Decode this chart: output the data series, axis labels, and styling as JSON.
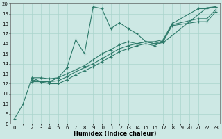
{
  "xlabel": "Humidex (Indice chaleur)",
  "bg_color": "#cde8e4",
  "line_color": "#2d7a6a",
  "grid_color": "#aad4cc",
  "xlim": [
    -0.5,
    23.5
  ],
  "ylim": [
    8,
    20
  ],
  "xtick_labels": [
    "0",
    "1",
    "2",
    "3",
    "4",
    "5",
    "6",
    "7",
    "8",
    "9",
    "10",
    "11",
    "12",
    "13",
    "14",
    "15",
    "16",
    "17",
    "18",
    "19",
    "20",
    "21",
    "22",
    "23"
  ],
  "yticks": [
    8,
    9,
    10,
    11,
    12,
    13,
    14,
    15,
    16,
    17,
    18,
    19,
    20
  ],
  "series": [
    {
      "x": [
        0,
        1,
        2,
        3,
        4,
        5,
        6,
        7,
        8,
        9,
        10,
        11,
        12,
        13,
        14,
        15,
        16,
        17,
        22,
        23
      ],
      "y": [
        8.5,
        10.0,
        12.6,
        12.2,
        12.2,
        12.6,
        13.6,
        16.4,
        15.0,
        19.7,
        19.5,
        17.5,
        18.1,
        17.5,
        17.0,
        16.2,
        16.0,
        16.1,
        19.6,
        19.7
      ]
    },
    {
      "x": [
        2,
        3,
        4,
        5,
        6,
        7,
        8,
        9,
        10,
        11,
        12,
        13,
        14,
        15,
        16,
        17,
        18,
        21,
        22,
        23
      ],
      "y": [
        12.6,
        12.6,
        12.5,
        12.6,
        13.0,
        13.4,
        13.8,
        14.4,
        15.0,
        15.4,
        15.9,
        16.2,
        16.0,
        16.2,
        16.2,
        16.4,
        18.0,
        19.5,
        19.5,
        19.7
      ]
    },
    {
      "x": [
        2,
        3,
        4,
        5,
        6,
        7,
        8,
        9,
        10,
        11,
        12,
        13,
        14,
        15,
        16,
        17,
        18,
        21,
        22,
        23
      ],
      "y": [
        12.4,
        12.2,
        12.2,
        12.3,
        12.7,
        13.2,
        13.6,
        14.0,
        14.5,
        15.0,
        15.5,
        15.8,
        16.0,
        16.2,
        16.0,
        16.3,
        17.9,
        18.5,
        18.5,
        19.4
      ]
    },
    {
      "x": [
        2,
        3,
        4,
        5,
        6,
        7,
        8,
        9,
        10,
        11,
        12,
        13,
        14,
        15,
        16,
        17,
        18,
        21,
        22,
        23
      ],
      "y": [
        12.2,
        12.2,
        12.0,
        12.0,
        12.4,
        12.9,
        13.3,
        13.7,
        14.2,
        14.7,
        15.2,
        15.5,
        15.8,
        16.0,
        15.8,
        16.2,
        17.8,
        18.2,
        18.2,
        19.2
      ]
    }
  ]
}
